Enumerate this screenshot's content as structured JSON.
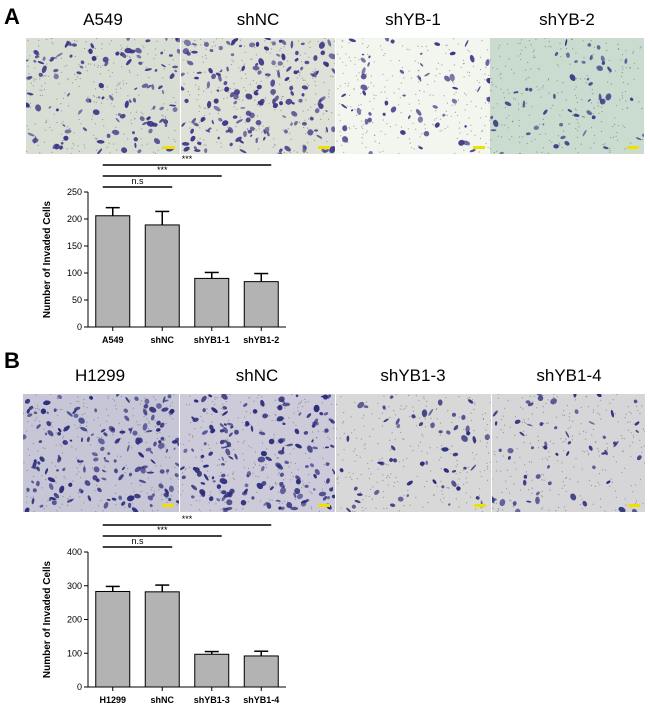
{
  "figure": {
    "panel_a_letter": "A",
    "panel_b_letter": "B"
  },
  "panel_a": {
    "image_labels": [
      "A549",
      "shNC",
      "shYB-1",
      "shYB-2"
    ],
    "image_backgrounds": [
      "#d9ded5",
      "#dde1d8",
      "#f2f6ee",
      "#c9dccf"
    ],
    "cell_color": "#3b3585",
    "cell_density": [
      0.7,
      1.0,
      0.35,
      0.3
    ]
  },
  "panel_b": {
    "image_labels": [
      "H1299",
      "shNC",
      "shYB1-3",
      "shYB1-4"
    ],
    "image_backgrounds": [
      "#c7c6d6",
      "#cdcbd9",
      "#d8d8d8",
      "#d6d6d8"
    ],
    "cell_color": "#2a2b7a",
    "cell_density": [
      1.0,
      1.0,
      0.35,
      0.35
    ]
  },
  "chart_data": [
    {
      "type": "bar",
      "ylabel": "Number of Invaded Cells",
      "categories": [
        "A549",
        "shNC",
        "shYB1-1",
        "shYB1-2"
      ],
      "values": [
        206,
        189,
        90,
        84
      ],
      "errors": [
        15,
        25,
        11,
        15
      ],
      "ylim": [
        0,
        250
      ],
      "yticks": [
        "0",
        "50",
        "100",
        "150",
        "200",
        "250"
      ],
      "bar_color": "#b3b3b3",
      "significance": [
        {
          "from": 0,
          "to": 1,
          "label": "n.s"
        },
        {
          "from": 0,
          "to": 2,
          "label": "***"
        },
        {
          "from": 0,
          "to": 3,
          "label": "***"
        }
      ]
    },
    {
      "type": "bar",
      "ylabel": "Number of Invaded Cells",
      "categories": [
        "H1299",
        "shNC",
        "shYB1-3",
        "shYB1-4"
      ],
      "values": [
        283,
        282,
        97,
        92
      ],
      "errors": [
        15,
        20,
        8,
        14
      ],
      "ylim": [
        0,
        400
      ],
      "yticks": [
        "0",
        "100",
        "200",
        "300",
        "400"
      ],
      "bar_color": "#b3b3b3",
      "significance": [
        {
          "from": 0,
          "to": 1,
          "label": "n.s"
        },
        {
          "from": 0,
          "to": 2,
          "label": "***"
        },
        {
          "from": 0,
          "to": 3,
          "label": "***"
        }
      ]
    }
  ]
}
